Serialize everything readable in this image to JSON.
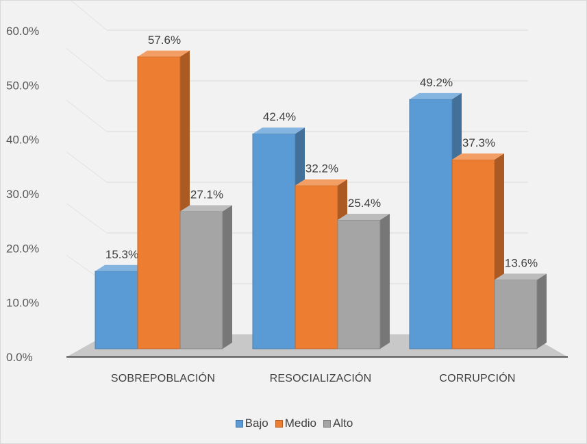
{
  "chart_data": {
    "type": "bar",
    "categories": [
      "SOBREPOBLACIÓN",
      "RESOCIALIZACIÓN",
      "CORRUPCIÓN"
    ],
    "series": [
      {
        "name": "Bajo",
        "values": [
          15.3,
          42.4,
          49.2
        ],
        "labels": [
          "15.3%",
          "42.4%",
          "49.2%"
        ],
        "color": "#5b9bd5"
      },
      {
        "name": "Medio",
        "values": [
          57.6,
          32.2,
          37.3
        ],
        "labels": [
          "57.6%",
          "32.2%",
          "37.3%"
        ],
        "color": "#ed7d31"
      },
      {
        "name": "Alto",
        "values": [
          27.1,
          25.4,
          13.6
        ],
        "labels": [
          "27.1%",
          "25.4%",
          "13.6%"
        ],
        "color": "#a5a5a5"
      }
    ],
    "y_ticks": [
      "0.0%",
      "10.0%",
      "20.0%",
      "30.0%",
      "40.0%",
      "50.0%",
      "60.0%"
    ],
    "ylim": [
      0,
      60
    ],
    "style": "3d-clustered-column",
    "grid": true,
    "legend_position": "bottom"
  }
}
